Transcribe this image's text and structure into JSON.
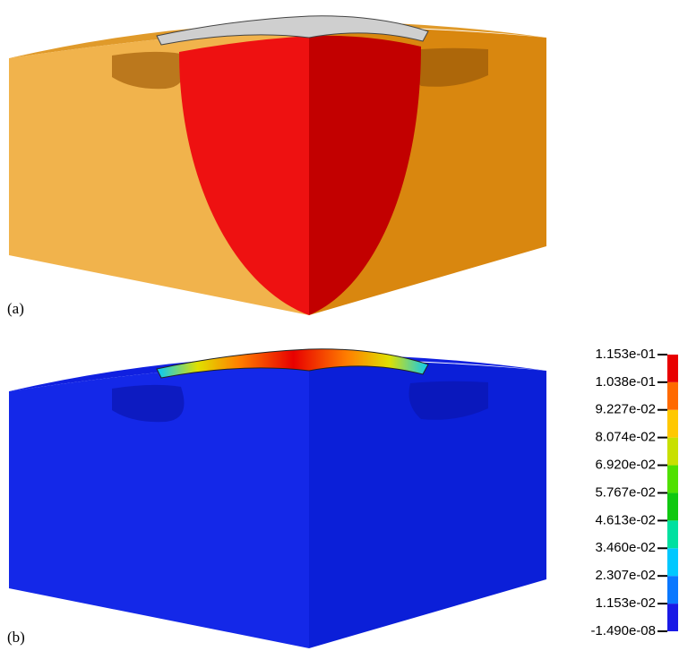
{
  "panels": [
    {
      "label": "(a)"
    },
    {
      "label": "(b)"
    }
  ],
  "colorbar": {
    "lim": [
      -1.49e-08,
      0.1153
    ],
    "ticks": [
      {
        "value": -1.49e-08,
        "label": "-1.490e-08"
      },
      {
        "value": 0.01153,
        "label": "1.153e-02"
      },
      {
        "value": 0.02307,
        "label": "2.307e-02"
      },
      {
        "value": 0.0346,
        "label": "3.460e-02"
      },
      {
        "value": 0.04613,
        "label": "4.613e-02"
      },
      {
        "value": 0.05767,
        "label": "5.767e-02"
      },
      {
        "value": 0.0692,
        "label": "6.920e-02"
      },
      {
        "value": 0.08074,
        "label": "8.074e-02"
      },
      {
        "value": 0.09227,
        "label": "9.227e-02"
      },
      {
        "value": 0.1038,
        "label": "1.038e-01"
      },
      {
        "value": 0.1153,
        "label": "1.153e-01"
      }
    ],
    "colors": [
      "#1a1ae6",
      "#0a78ff",
      "#00c8ff",
      "#00e0a0",
      "#10c810",
      "#50e000",
      "#c8e000",
      "#ffc800",
      "#ff6a00",
      "#e80000"
    ]
  }
}
